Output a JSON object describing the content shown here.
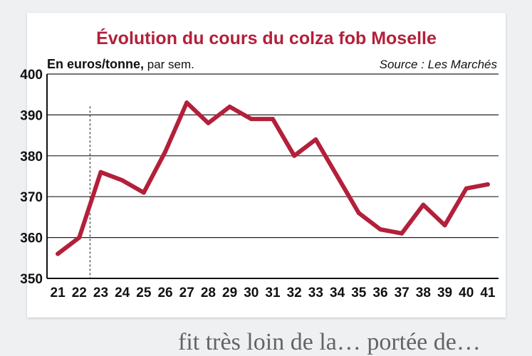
{
  "caption": {
    "text": "fit très loin de la… portée de…"
  },
  "chart_data": {
    "type": "line",
    "title": "Évolution du cours du colza fob Moselle",
    "unit_bold": "En euros/tonne,",
    "unit_normal": " par sem.",
    "source": "Source : Les Marchés",
    "x": [
      21,
      22,
      23,
      24,
      25,
      26,
      27,
      28,
      29,
      30,
      31,
      32,
      33,
      34,
      35,
      36,
      37,
      38,
      39,
      40,
      41
    ],
    "xticks": [
      "21",
      "22",
      "23",
      "24",
      "25",
      "26",
      "27",
      "28",
      "29",
      "30",
      "31",
      "32",
      "33",
      "34",
      "35",
      "36",
      "37",
      "38",
      "39",
      "40",
      "41"
    ],
    "series": [
      {
        "values": [
          356,
          360,
          376,
          374,
          371,
          381,
          393,
          388,
          392,
          389,
          389,
          380,
          384,
          375,
          366,
          362,
          361,
          368,
          363,
          372,
          373
        ],
        "color": "#b3203a"
      }
    ],
    "ylim": [
      350,
      400
    ],
    "yticks": [
      350,
      360,
      370,
      380,
      390,
      400
    ],
    "xlim": [
      20.5,
      41.5
    ],
    "marker_x": 22.5,
    "grid": true,
    "legend": "none"
  }
}
